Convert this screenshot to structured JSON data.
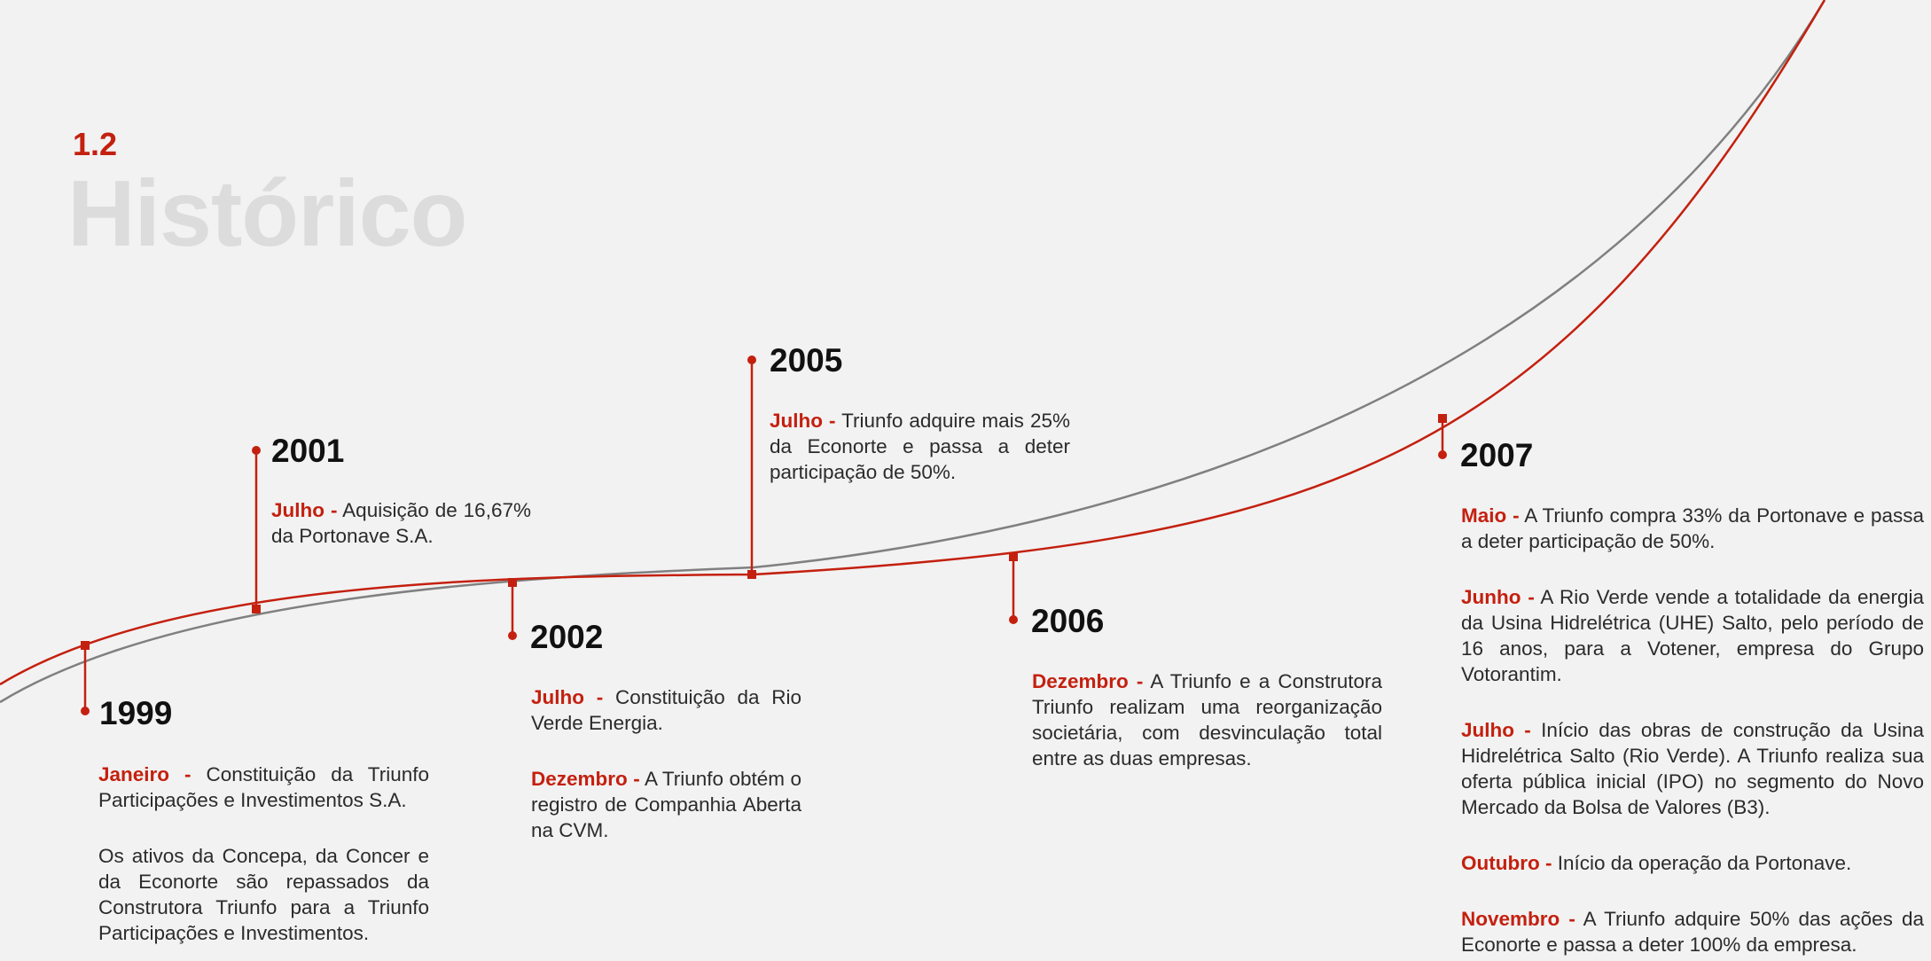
{
  "header": {
    "number": "1.2",
    "title": "Histórico"
  },
  "colors": {
    "accent": "#c4200f",
    "timeline_secondary": "#808080",
    "title_gray": "#dcdcdc"
  },
  "timeline": [
    {
      "year": "1999",
      "entries": [
        {
          "month": "Janeiro -",
          "text": "Constituição da Triunfo Participações e Investimentos S.A."
        },
        {
          "month": "",
          "text": "Os ativos da Concepa, da Concer e da Econorte são repassados da Construtora Triunfo para a Triunfo Participações e Investimentos."
        }
      ]
    },
    {
      "year": "2001",
      "entries": [
        {
          "month": "Julho -",
          "text": "Aquisição de 16,67% da Portonave S.A."
        }
      ]
    },
    {
      "year": "2002",
      "entries": [
        {
          "month": "Julho -",
          "text": "Constituição da Rio Verde Energia."
        },
        {
          "month": "Dezembro -",
          "text": "A Triunfo obtém o registro de Companhia Aberta na CVM."
        }
      ]
    },
    {
      "year": "2005",
      "entries": [
        {
          "month": "Julho -",
          "text": "Triunfo adquire mais 25% da Econorte e passa a deter participação de 50%."
        }
      ]
    },
    {
      "year": "2006",
      "entries": [
        {
          "month": "Dezembro -",
          "text": "A Triunfo e a Construtora Triunfo realizam uma reorganização societária, com desvinculação total entre as duas empresas."
        }
      ]
    },
    {
      "year": "2007",
      "entries": [
        {
          "month": "Maio -",
          "text": "A Triunfo compra 33% da Portonave e passa a deter participação de 50%."
        },
        {
          "month": "Junho -",
          "text": "A Rio Verde vende a totalidade da energia da Usina Hidrelétrica (UHE) Salto, pelo período de 16 anos, para a Votener, empresa do Grupo Votorantim."
        },
        {
          "month": "Julho -",
          "text": "Início das obras de construção da Usina Hidrelétrica Salto (Rio Verde). A Triunfo realiza sua oferta pública inicial (IPO) no segmento do Novo Mercado da Bolsa de Valores (B3)."
        },
        {
          "month": "Outubro -",
          "text": "Início da operação da Portonave."
        },
        {
          "month": "Novembro -",
          "text": "A Triunfo adquire 50% das ações da Econorte e passa a deter 100% da empresa."
        }
      ]
    }
  ]
}
